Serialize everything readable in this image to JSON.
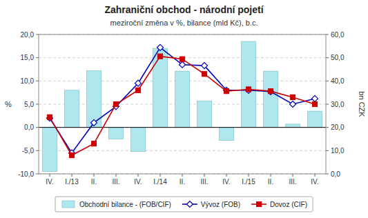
{
  "chart_data": {
    "type": "bar",
    "title": "Zahraniční obchod - národní pojetí",
    "subtitle": "meziroční změna v %, bilance (mld Kč), b.c.",
    "categories": [
      "IV.",
      "I./13",
      "II.",
      "III.",
      "IV.",
      "I./14",
      "II.",
      "III.",
      "IV.",
      "I./15",
      "II.",
      "III.",
      "IV."
    ],
    "series": [
      {
        "name": "Obchodní bilance - (FOB/CIF)",
        "type": "bar",
        "color": "#aee8ee",
        "values": [
          -9.5,
          8.0,
          12.2,
          -2.5,
          -5.2,
          17.0,
          12.1,
          5.7,
          -2.8,
          18.5,
          12.1,
          0.7,
          3.5
        ]
      },
      {
        "name": "Vývoz (FOB)",
        "type": "line",
        "color": "#0000bb",
        "marker": "diamond",
        "values": [
          2.0,
          -5.5,
          1.0,
          4.5,
          9.5,
          17.2,
          13.5,
          13.3,
          8.0,
          8.0,
          7.7,
          5.0,
          6.2
        ]
      },
      {
        "name": "Dovoz (CIF)",
        "type": "line",
        "color": "#cc0000",
        "marker": "square",
        "values": [
          2.2,
          -6.0,
          -3.5,
          5.0,
          8.0,
          15.3,
          14.7,
          11.5,
          7.8,
          8.2,
          7.8,
          6.5,
          5.0
        ]
      }
    ],
    "ylabel": "%",
    "y2label": "bn CZK",
    "ylim": [
      -10.0,
      20.0
    ],
    "yticks": [
      {
        "value": -10.0,
        "label": "-10,0"
      },
      {
        "value": -5.0,
        "label": "-5,0"
      },
      {
        "value": 0.0,
        "label": "0,0"
      },
      {
        "value": 5.0,
        "label": "5,0"
      },
      {
        "value": 10.0,
        "label": "10,0"
      },
      {
        "value": 15.0,
        "label": "15,0"
      },
      {
        "value": 20.0,
        "label": "20,0"
      }
    ],
    "y2lim": [
      0.0,
      60.0
    ],
    "y2ticks": [
      {
        "value": 0.0,
        "label": "0,0"
      },
      {
        "value": 10.0,
        "label": "10,0"
      },
      {
        "value": 20.0,
        "label": "20,0"
      },
      {
        "value": 30.0,
        "label": "30,0"
      },
      {
        "value": 40.0,
        "label": "40,0"
      },
      {
        "value": 50.0,
        "label": "50,0"
      },
      {
        "value": 60.0,
        "label": "60,0"
      }
    ],
    "grid": true,
    "legend": "bottom"
  }
}
